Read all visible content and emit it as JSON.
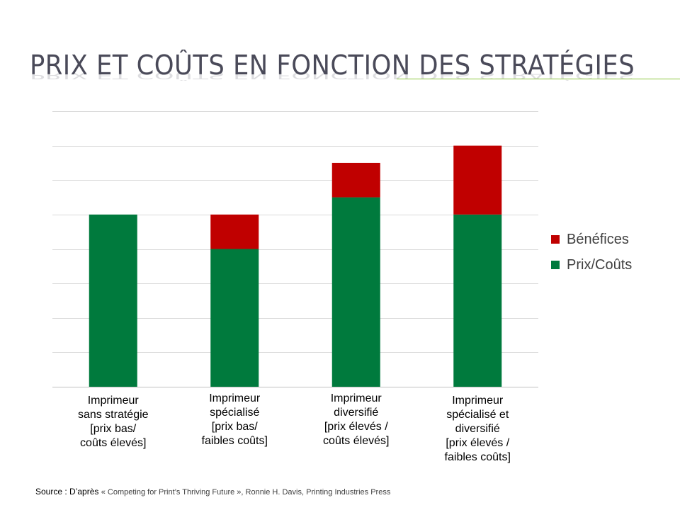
{
  "slide": {
    "title": "Prix et coûts en fonction des stratégies"
  },
  "colors": {
    "cost": "#007a3d",
    "profit": "#c00000",
    "grid": "#d9d9d9",
    "axis": "#bfbfbf",
    "title_rule": "#8cc63f"
  },
  "chart_data": {
    "type": "bar",
    "stacked": true,
    "categories": [
      "Imprimeur sans stratégie [prix bas/ coûts élevés]",
      "Imprimeur spécialisé [prix bas/ faibles coûts]",
      "Imprimeur diversifié [prix élevés / coûts élevés]",
      "Imprimeur spécialisé et diversifié [prix élevés / faibles coûts]"
    ],
    "series": [
      {
        "name": "Prix/Coûts",
        "values": [
          5,
          4,
          5.5,
          5
        ]
      },
      {
        "name": "Bénéfices",
        "values": [
          0,
          1,
          1,
          2
        ]
      }
    ],
    "ylim": [
      0,
      8
    ],
    "y_gridlines": [
      0,
      1,
      2,
      3,
      4,
      5,
      6,
      7,
      8
    ],
    "y_tick_labels_shown": false,
    "legend_position": "right",
    "legend_order": [
      "Bénéfices",
      "Prix/Coûts"
    ]
  },
  "category_label_lines": [
    [
      "Imprimeur",
      "sans stratégie",
      "[prix bas/",
      "coûts élevés]"
    ],
    [
      "Imprimeur",
      "spécialisé",
      "[prix bas/",
      "faibles coûts]"
    ],
    [
      "Imprimeur",
      "diversifié",
      "[prix élevés /",
      "coûts élevés]"
    ],
    [
      "Imprimeur",
      "spécialisé et",
      "diversifié",
      "[prix élevés /",
      "faibles coûts]"
    ]
  ],
  "legend": {
    "profit_label": "Bénéfices",
    "cost_label": "Prix/Coûts"
  },
  "source": {
    "prefix": "Source : D’après",
    "detail": "« Competing for Print’s Thriving Future », Ronnie H. Davis, Printing Industries Press"
  }
}
